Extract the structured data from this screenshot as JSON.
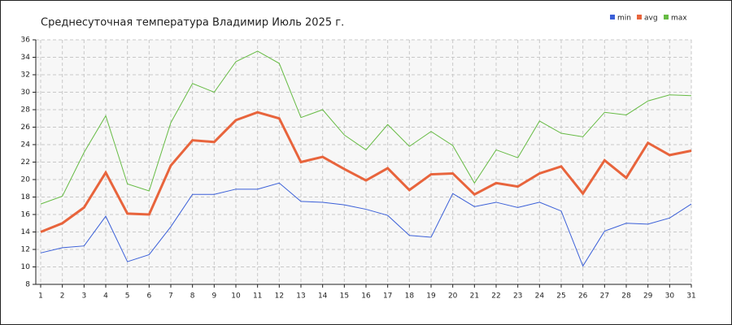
{
  "chart_data": {
    "type": "line",
    "title": "Среднесуточная температура Владимир  Июль 2025 г.",
    "x": [
      1,
      2,
      3,
      4,
      5,
      6,
      7,
      8,
      9,
      10,
      11,
      12,
      13,
      14,
      15,
      16,
      17,
      18,
      19,
      20,
      21,
      22,
      23,
      24,
      25,
      26,
      27,
      28,
      29,
      30,
      31
    ],
    "xlim": [
      1,
      31
    ],
    "xticks": [
      1,
      2,
      3,
      4,
      5,
      6,
      7,
      8,
      9,
      10,
      11,
      12,
      13,
      14,
      15,
      16,
      17,
      18,
      19,
      20,
      21,
      22,
      23,
      24,
      25,
      26,
      27,
      28,
      29,
      30,
      31
    ],
    "ylim": [
      8,
      36
    ],
    "yticks": [
      8,
      10,
      12,
      14,
      16,
      18,
      20,
      22,
      24,
      26,
      28,
      30,
      32,
      34,
      36
    ],
    "grid": true,
    "legend": "top-right",
    "series": [
      {
        "name": "min",
        "color": "#3a5fd8",
        "values": [
          11.6,
          12.2,
          12.4,
          15.8,
          10.6,
          11.4,
          14.6,
          18.3,
          18.3,
          18.9,
          18.9,
          19.6,
          17.5,
          17.4,
          17.1,
          16.6,
          15.9,
          13.6,
          13.4,
          18.4,
          16.9,
          17.4,
          16.8,
          17.4,
          16.4,
          10.1,
          14.1,
          15.0,
          14.9,
          15.6,
          17.2
        ]
      },
      {
        "name": "avg",
        "color": "#e8643c",
        "values": [
          14.0,
          15.0,
          16.8,
          20.8,
          16.1,
          16.0,
          21.6,
          24.5,
          24.3,
          26.8,
          27.7,
          27.0,
          22.0,
          22.6,
          21.2,
          19.9,
          21.3,
          18.8,
          20.6,
          20.7,
          18.3,
          19.6,
          19.2,
          20.7,
          21.5,
          18.4,
          22.2,
          20.2,
          24.2,
          22.8,
          23.3
        ]
      },
      {
        "name": "max",
        "color": "#66bb44",
        "values": [
          17.2,
          18.1,
          23.1,
          27.3,
          19.5,
          18.7,
          26.5,
          31.0,
          30.0,
          33.5,
          34.7,
          33.3,
          27.1,
          28.0,
          25.1,
          23.4,
          26.3,
          23.8,
          25.5,
          23.9,
          19.6,
          23.4,
          22.5,
          26.7,
          25.3,
          24.9,
          27.7,
          27.4,
          29.0,
          29.7,
          29.6
        ]
      }
    ]
  }
}
